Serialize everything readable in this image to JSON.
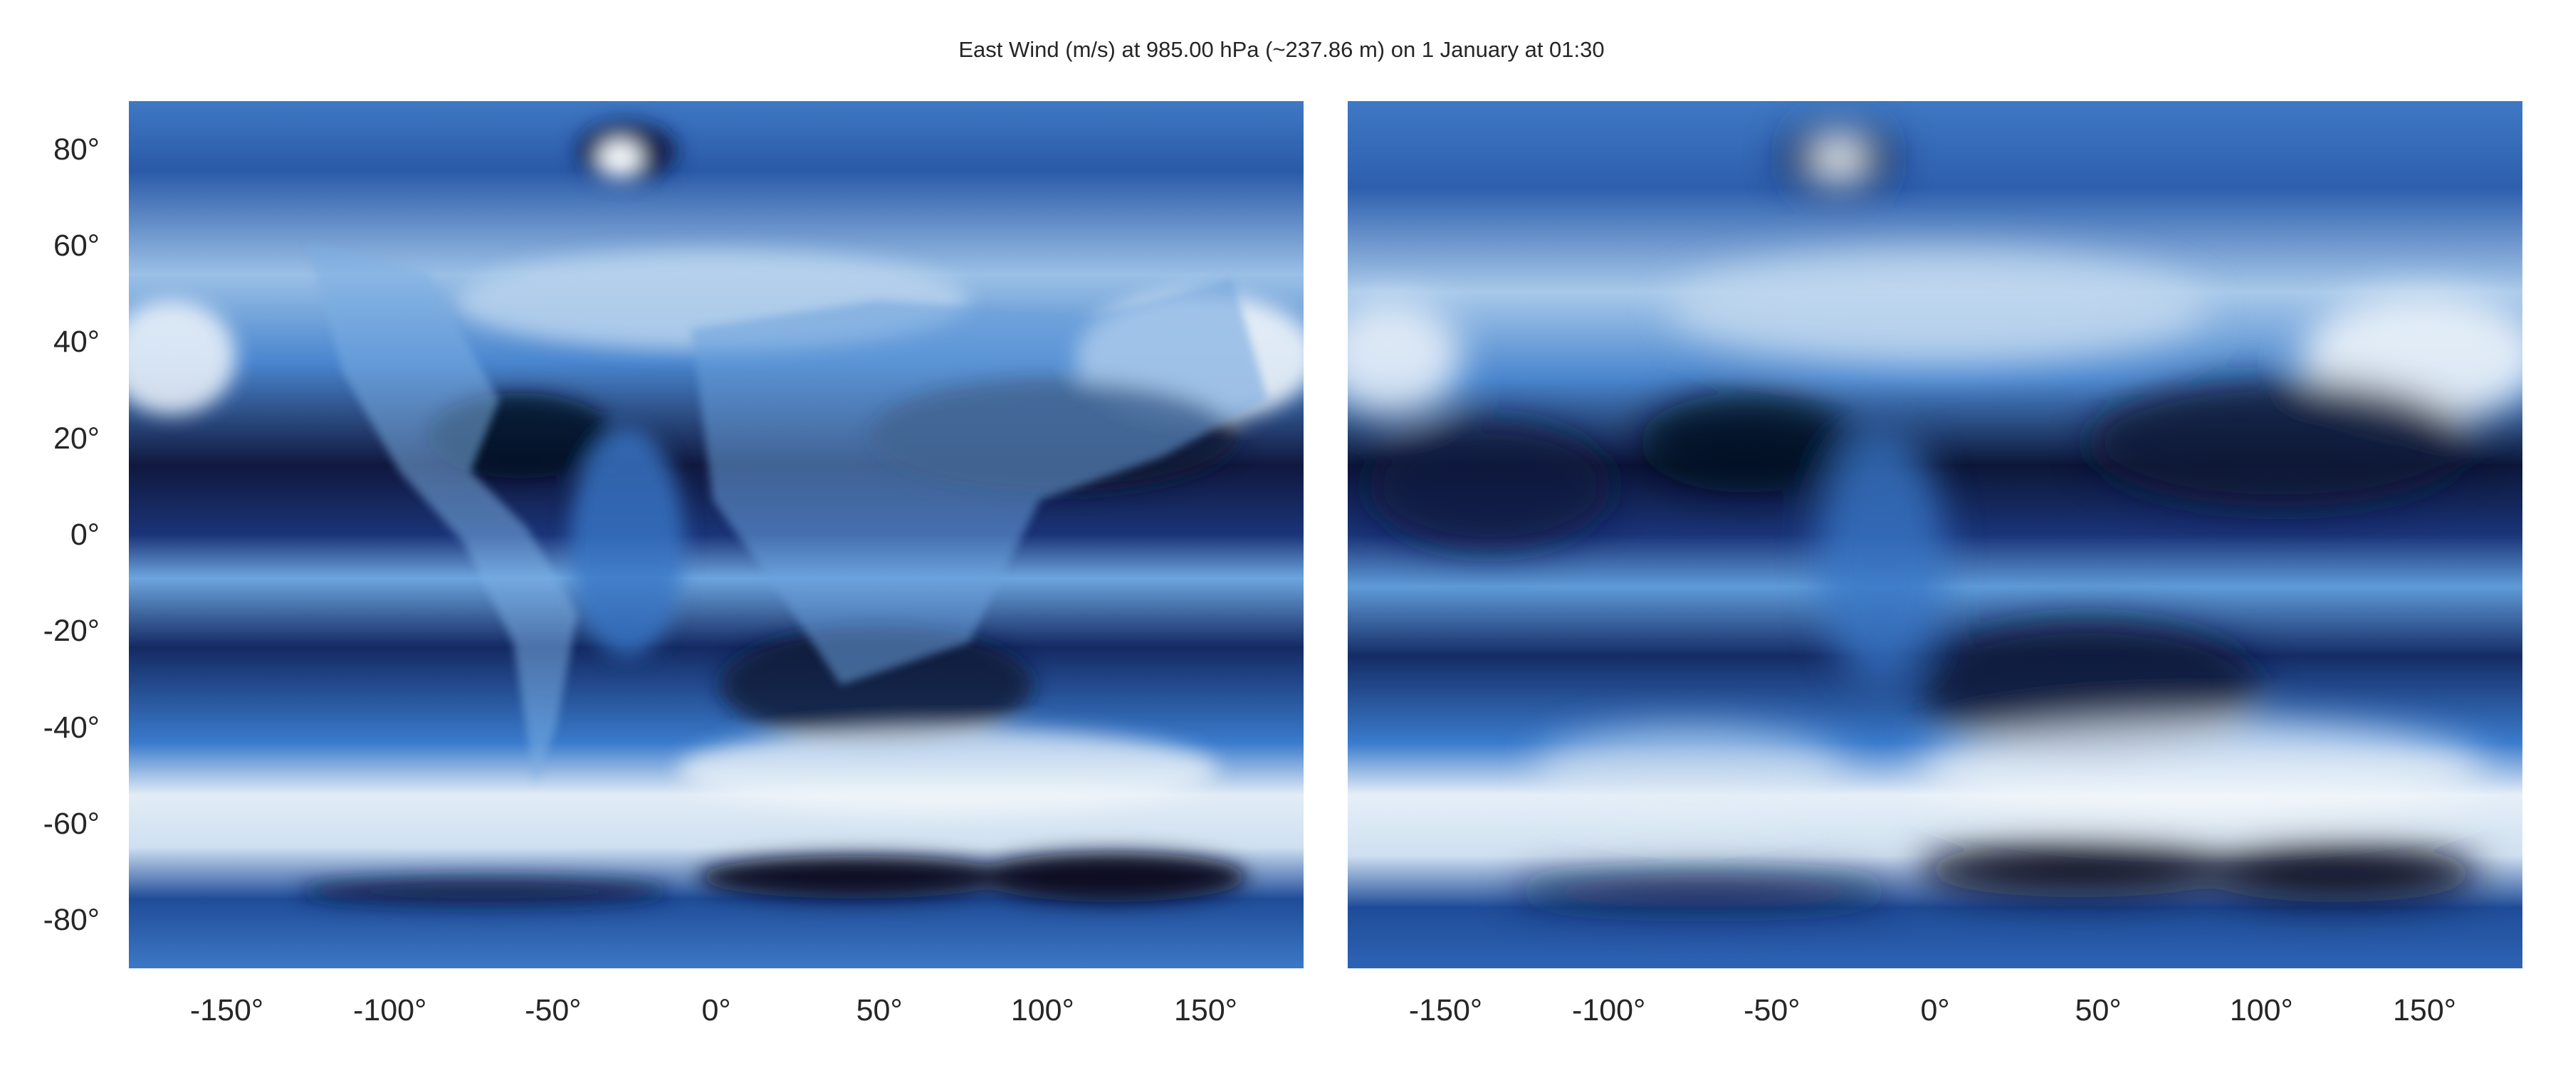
{
  "title": "East Wind (m/s) at 985.00 hPa (~237.86 m) on 1 January at 01:30",
  "y_ticks": [
    "80°",
    "60°",
    "40°",
    "20°",
    "0°",
    "-20°",
    "-40°",
    "-60°",
    "-80°"
  ],
  "x_ticks": [
    "-150°",
    "-100°",
    "-50°",
    "0°",
    "50°",
    "100°",
    "150°"
  ],
  "panels": [
    {
      "name": "left-map-panel",
      "detail": "high-resolution"
    },
    {
      "name": "right-map-panel",
      "detail": "smoothed"
    }
  ],
  "colors": {
    "colormap_low": "#070b22",
    "colormap_mid": "#2e6bc4",
    "colormap_high": "#f4f8fb"
  }
}
